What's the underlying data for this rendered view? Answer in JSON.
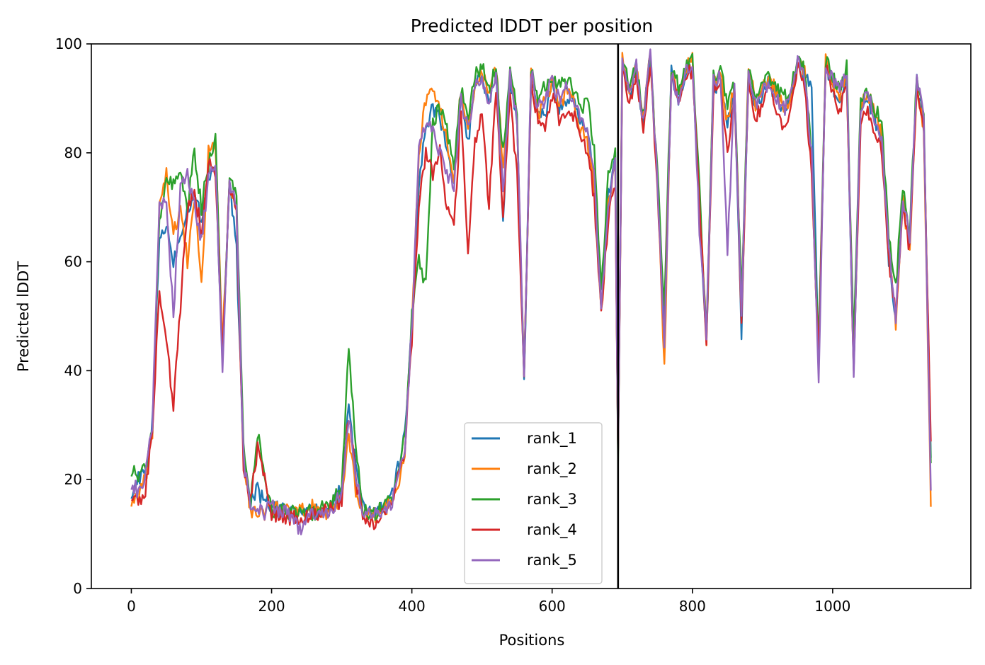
{
  "chart_data": {
    "type": "line",
    "title": "Predicted lDDT per position",
    "xlabel": "Positions",
    "ylabel": "Predicted lDDT",
    "xlim": [
      -57,
      1197
    ],
    "ylim": [
      0,
      100
    ],
    "xticks": [
      0,
      200,
      400,
      600,
      800,
      1000
    ],
    "yticks": [
      0,
      20,
      40,
      60,
      80,
      100
    ],
    "grid": false,
    "legend_position": "lower-center",
    "vertical_line": {
      "x": 694,
      "color": "#000000"
    },
    "series": [
      {
        "name": "rank_1",
        "color": "#1f77b4",
        "x": [
          0,
          10,
          20,
          30,
          40,
          50,
          60,
          70,
          80,
          90,
          100,
          110,
          120,
          130,
          140,
          150,
          160,
          170,
          180,
          190,
          200,
          220,
          240,
          260,
          280,
          300,
          310,
          320,
          330,
          340,
          350,
          360,
          370,
          380,
          390,
          400,
          410,
          420,
          430,
          440,
          450,
          460,
          470,
          480,
          490,
          500,
          510,
          520,
          530,
          540,
          550,
          560,
          570,
          580,
          590,
          600,
          610,
          620,
          630,
          640,
          650,
          660,
          670,
          680,
          690,
          694,
          700,
          710,
          720,
          730,
          740,
          750,
          760,
          770,
          780,
          790,
          800,
          810,
          820,
          830,
          840,
          850,
          860,
          870,
          880,
          890,
          900,
          910,
          920,
          930,
          940,
          950,
          960,
          970,
          980,
          990,
          1000,
          1010,
          1020,
          1030,
          1040,
          1050,
          1060,
          1070,
          1080,
          1090,
          1100,
          1110,
          1120,
          1130,
          1140
        ],
        "y": [
          18,
          20,
          21,
          30,
          64,
          67,
          60,
          65,
          70,
          72,
          68,
          76,
          78,
          42,
          75,
          62,
          24,
          16,
          18,
          16,
          15,
          14,
          14,
          14,
          15,
          18,
          34,
          22,
          15,
          14,
          14,
          15,
          16,
          22,
          29,
          48,
          74,
          85,
          88,
          87,
          80,
          75,
          90,
          82,
          92,
          94,
          88,
          95,
          68,
          94,
          85,
          37,
          94,
          88,
          86,
          93,
          88,
          90,
          89,
          86,
          84,
          75,
          52,
          72,
          80,
          24,
          96,
          90,
          96,
          85,
          97,
          75,
          48,
          95,
          90,
          95,
          96,
          70,
          45,
          92,
          93,
          85,
          92,
          47,
          95,
          88,
          91,
          93,
          90,
          88,
          90,
          96,
          94,
          92,
          43,
          96,
          92,
          90,
          94,
          39,
          88,
          90,
          86,
          82,
          60,
          50,
          72,
          64,
          93,
          85,
          24
        ],
        "xmax": 1140
      },
      {
        "name": "rank_2",
        "color": "#ff7f0e",
        "x": [
          0,
          10,
          20,
          30,
          40,
          50,
          60,
          70,
          80,
          90,
          100,
          110,
          120,
          130,
          140,
          150,
          160,
          170,
          180,
          190,
          200,
          220,
          240,
          260,
          280,
          300,
          310,
          320,
          330,
          340,
          350,
          360,
          370,
          380,
          390,
          400,
          410,
          420,
          430,
          440,
          450,
          460,
          470,
          480,
          490,
          500,
          510,
          520,
          530,
          540,
          550,
          560,
          570,
          580,
          590,
          600,
          610,
          620,
          630,
          640,
          650,
          660,
          670,
          680,
          690,
          694,
          700,
          710,
          720,
          730,
          740,
          750,
          760,
          770,
          780,
          790,
          800,
          810,
          820,
          830,
          840,
          850,
          860,
          870,
          880,
          890,
          900,
          910,
          920,
          930,
          940,
          950,
          960,
          970,
          980,
          990,
          1000,
          1010,
          1020,
          1030,
          1040,
          1050,
          1060,
          1070,
          1080,
          1090,
          1100,
          1110,
          1120,
          1130,
          1140
        ],
        "y": [
          16,
          17,
          20,
          28,
          70,
          76,
          65,
          70,
          60,
          72,
          56,
          80,
          81,
          45,
          75,
          70,
          24,
          14,
          14,
          14,
          15,
          14,
          14,
          15,
          14,
          16,
          28,
          18,
          14,
          14,
          13,
          15,
          15,
          18,
          25,
          48,
          80,
          90,
          91,
          88,
          82,
          75,
          92,
          84,
          93,
          95,
          90,
          96,
          78,
          95,
          86,
          38,
          95,
          87,
          90,
          93,
          89,
          91,
          90,
          85,
          82,
          74,
          50,
          70,
          78,
          24,
          97,
          91,
          96,
          86,
          98,
          75,
          40,
          96,
          91,
          96,
          97,
          72,
          46,
          93,
          94,
          86,
          92,
          52,
          96,
          89,
          92,
          94,
          91,
          89,
          90,
          97,
          95,
          78,
          40,
          97,
          93,
          91,
          95,
          42,
          89,
          91,
          87,
          83,
          62,
          49,
          71,
          62,
          93,
          84,
          15
        ],
        "xmax": 1140
      },
      {
        "name": "rank_3",
        "color": "#2ca02c",
        "x": [
          0,
          10,
          20,
          30,
          40,
          50,
          60,
          70,
          80,
          90,
          100,
          110,
          120,
          130,
          140,
          150,
          160,
          170,
          180,
          190,
          200,
          220,
          240,
          260,
          280,
          300,
          310,
          320,
          330,
          340,
          350,
          360,
          370,
          380,
          390,
          400,
          410,
          420,
          430,
          440,
          450,
          460,
          470,
          480,
          490,
          500,
          510,
          520,
          530,
          540,
          550,
          560,
          570,
          580,
          590,
          600,
          610,
          620,
          630,
          640,
          650,
          660,
          670,
          680,
          690,
          694,
          700,
          710,
          720,
          730,
          740,
          750,
          760,
          770,
          780,
          790,
          800,
          810,
          820,
          830,
          840,
          850,
          860,
          870,
          880,
          890,
          900,
          910,
          920,
          930,
          940,
          950,
          960,
          970,
          980,
          990,
          1000,
          1010,
          1020,
          1030,
          1040,
          1050,
          1060,
          1070,
          1080,
          1090,
          1100,
          1110,
          1120,
          1130,
          1140
        ],
        "y": [
          22,
          20,
          22,
          30,
          68,
          75,
          74,
          76,
          70,
          80,
          70,
          78,
          83,
          42,
          76,
          72,
          26,
          16,
          28,
          22,
          14,
          14,
          14,
          14,
          15,
          18,
          44,
          26,
          15,
          14,
          14,
          15,
          16,
          22,
          28,
          50,
          60,
          56,
          86,
          88,
          84,
          78,
          92,
          86,
          94,
          96,
          91,
          96,
          80,
          95,
          88,
          38,
          95,
          90,
          92,
          94,
          92,
          93,
          92,
          88,
          90,
          80,
          55,
          76,
          80,
          24,
          97,
          92,
          96,
          87,
          98,
          76,
          52,
          96,
          92,
          96,
          97,
          74,
          46,
          94,
          95,
          89,
          92,
          54,
          96,
          90,
          92,
          94,
          92,
          90,
          91,
          97,
          95,
          80,
          45,
          97,
          94,
          92,
          96,
          44,
          90,
          91,
          88,
          86,
          64,
          55,
          74,
          66,
          95,
          86,
          23
        ],
        "xmax": 1140
      },
      {
        "name": "rank_4",
        "color": "#d62728",
        "x": [
          0,
          10,
          20,
          30,
          40,
          50,
          60,
          70,
          80,
          90,
          100,
          110,
          120,
          130,
          140,
          150,
          160,
          170,
          180,
          190,
          200,
          220,
          240,
          260,
          280,
          300,
          310,
          320,
          330,
          340,
          350,
          360,
          370,
          380,
          390,
          400,
          410,
          420,
          430,
          440,
          450,
          460,
          470,
          480,
          490,
          500,
          510,
          520,
          530,
          540,
          550,
          560,
          570,
          580,
          590,
          600,
          610,
          620,
          630,
          640,
          650,
          660,
          670,
          680,
          690,
          694,
          700,
          710,
          720,
          730,
          740,
          750,
          760,
          770,
          780,
          790,
          800,
          810,
          820,
          830,
          840,
          850,
          860,
          870,
          880,
          890,
          900,
          910,
          920,
          930,
          940,
          950,
          960,
          970,
          980,
          990,
          1000,
          1010,
          1020,
          1030,
          1040,
          1050,
          1060,
          1070,
          1080,
          1090,
          1100,
          1110,
          1120,
          1130,
          1140
        ],
        "y": [
          17,
          16,
          18,
          28,
          55,
          46,
          33,
          52,
          70,
          72,
          66,
          78,
          76,
          42,
          74,
          68,
          22,
          16,
          26,
          20,
          14,
          13,
          13,
          14,
          14,
          16,
          32,
          20,
          13,
          12,
          12,
          14,
          15,
          20,
          26,
          46,
          70,
          80,
          76,
          80,
          70,
          66,
          88,
          62,
          82,
          88,
          70,
          92,
          68,
          90,
          76,
          40,
          93,
          86,
          85,
          91,
          86,
          88,
          87,
          84,
          80,
          72,
          50,
          68,
          75,
          24,
          96,
          89,
          95,
          84,
          97,
          74,
          45,
          94,
          89,
          94,
          95,
          70,
          46,
          91,
          92,
          80,
          91,
          50,
          94,
          86,
          89,
          92,
          88,
          85,
          88,
          96,
          93,
          76,
          42,
          96,
          91,
          88,
          93,
          40,
          86,
          88,
          84,
          80,
          60,
          50,
          70,
          62,
          92,
          84,
          27
        ],
        "xmax": 1140
      },
      {
        "name": "rank_5",
        "color": "#9467bd",
        "x": [
          0,
          10,
          20,
          30,
          40,
          50,
          60,
          70,
          80,
          90,
          100,
          110,
          120,
          130,
          140,
          150,
          160,
          170,
          180,
          190,
          200,
          220,
          240,
          260,
          280,
          300,
          310,
          320,
          330,
          340,
          350,
          360,
          370,
          380,
          390,
          400,
          410,
          420,
          430,
          440,
          450,
          460,
          470,
          480,
          490,
          500,
          510,
          520,
          530,
          540,
          550,
          560,
          570,
          580,
          590,
          600,
          610,
          620,
          630,
          640,
          650,
          660,
          670,
          680,
          690,
          694,
          700,
          710,
          720,
          730,
          740,
          750,
          760,
          770,
          780,
          790,
          800,
          810,
          820,
          830,
          840,
          850,
          860,
          870,
          880,
          890,
          900,
          910,
          920,
          930,
          940,
          950,
          960,
          970,
          980,
          990,
          1000,
          1010,
          1020,
          1030,
          1040,
          1050,
          1060,
          1070,
          1080,
          1090,
          1100,
          1110,
          1120,
          1130,
          1140
        ],
        "y": [
          19,
          18,
          20,
          30,
          70,
          72,
          50,
          74,
          76,
          70,
          64,
          75,
          78,
          41,
          75,
          70,
          24,
          14,
          14,
          14,
          15,
          14,
          11,
          14,
          14,
          17,
          32,
          20,
          14,
          14,
          14,
          15,
          15,
          21,
          26,
          48,
          80,
          86,
          84,
          80,
          76,
          74,
          90,
          84,
          92,
          94,
          89,
          95,
          72,
          94,
          86,
          39,
          95,
          88,
          90,
          93,
          90,
          92,
          90,
          86,
          84,
          76,
          52,
          70,
          78,
          24,
          97,
          91,
          96,
          86,
          98,
          76,
          44,
          95,
          90,
          95,
          96,
          66,
          47,
          93,
          94,
          62,
          92,
          51,
          95,
          89,
          91,
          93,
          90,
          88,
          90,
          97,
          94,
          80,
          38,
          97,
          93,
          91,
          95,
          40,
          89,
          91,
          86,
          82,
          62,
          50,
          72,
          64,
          94,
          86,
          18
        ],
        "xmax": 1140
      }
    ]
  }
}
